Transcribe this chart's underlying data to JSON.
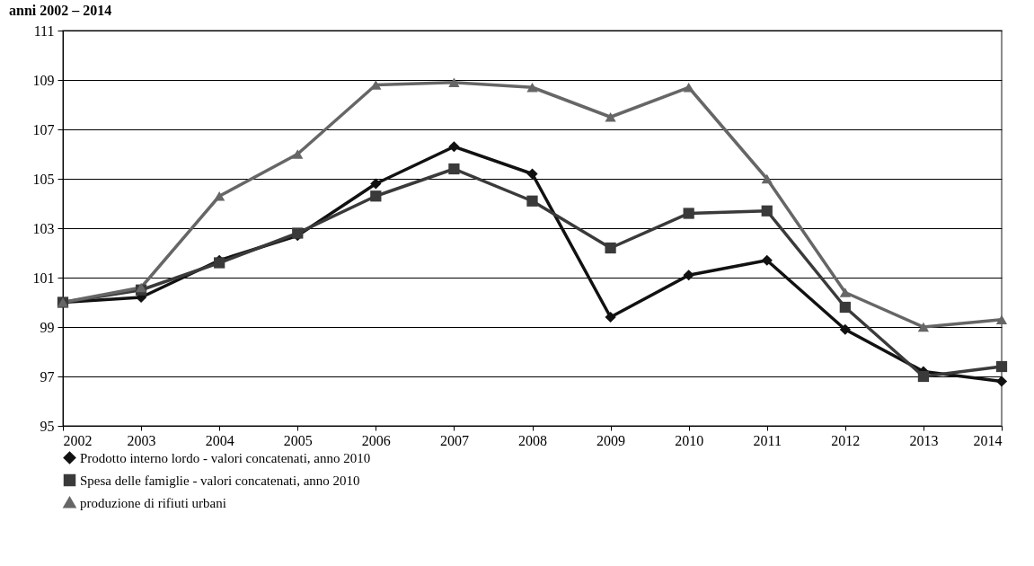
{
  "chart_data": {
    "type": "line",
    "title": "anni 2002 – 2014",
    "categories": [
      "2002",
      "2003",
      "2004",
      "2005",
      "2006",
      "2007",
      "2008",
      "2009",
      "2010",
      "2011",
      "2012",
      "2013",
      "2014"
    ],
    "series": [
      {
        "name": "Prodotto interno lordo - valori concatenati, anno 2010",
        "color": "#111111",
        "marker": "diamond",
        "values": [
          100.0,
          100.2,
          101.7,
          102.7,
          104.8,
          106.3,
          105.2,
          99.4,
          101.1,
          101.7,
          98.9,
          97.2,
          96.8
        ]
      },
      {
        "name": "Spesa delle famiglie - valori concatenati, anno 2010",
        "color": "#3a3a3a",
        "marker": "square",
        "values": [
          100.0,
          100.5,
          101.6,
          102.8,
          104.3,
          105.4,
          104.1,
          102.2,
          103.6,
          103.7,
          99.8,
          97.0,
          97.4
        ]
      },
      {
        "name": "produzione di rifiuti urbani",
        "color": "#666666",
        "marker": "triangle",
        "values": [
          100.0,
          100.6,
          104.3,
          106.0,
          108.8,
          108.9,
          108.7,
          107.5,
          108.7,
          105.0,
          100.4,
          99.0,
          99.3
        ]
      }
    ],
    "ylim": [
      95,
      111
    ],
    "yticks": [
      95,
      97,
      99,
      101,
      103,
      105,
      107,
      109,
      111
    ],
    "grid": "y",
    "legend": "bottom",
    "line_style": "solid"
  }
}
